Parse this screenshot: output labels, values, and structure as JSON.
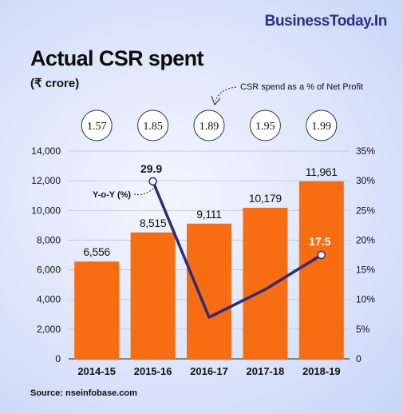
{
  "brand": "BusinessToday.In",
  "title": "Actual CSR spent",
  "unit_label": "(₹ crore)",
  "csr_note": "CSR spend as a % of Net Profit",
  "source": "Source: nseinfobase.com",
  "colors": {
    "bar": "#f96d12",
    "line": "#2f2a7c",
    "highlight": "#f96d12",
    "brand": "#2a2f86"
  },
  "chart_data": {
    "type": "bar",
    "categories": [
      "2014-15",
      "2015-16",
      "2016-17",
      "2017-18",
      "2018-19"
    ],
    "values": [
      6556,
      8515,
      9111,
      10179,
      11961
    ],
    "value_labels": [
      "6,556",
      "8,515",
      "9,111",
      "10,179",
      "11,961"
    ],
    "ylim": [
      0,
      14000
    ],
    "y_ticks": [
      0,
      2000,
      4000,
      6000,
      8000,
      10000,
      12000,
      14000
    ],
    "y_tick_labels": [
      "0",
      "2,000",
      "4,000",
      "6,000",
      "8,000",
      "10,000",
      "12,000",
      "14,000"
    ],
    "pct_of_net_profit": [
      "1.57",
      "1.85",
      "1.89",
      "1.95",
      "1.99"
    ],
    "yoy_series": {
      "name": "Y-o-Y (%)",
      "categories": [
        "2015-16",
        "2016-17",
        "2017-18",
        "2018-19"
      ],
      "values": [
        29.9,
        7.0,
        11.7,
        17.5
      ],
      "point_labels": {
        "2015-16": "29.9",
        "2018-19": "17.5"
      }
    },
    "y2lim": [
      0,
      35
    ],
    "y2_ticks": [
      0,
      5,
      10,
      15,
      20,
      25,
      30,
      35
    ],
    "y2_tick_labels": [
      "0",
      "5%",
      "10%",
      "15%",
      "20%",
      "25%",
      "30%",
      "35%"
    ],
    "grid": "horizontal"
  }
}
